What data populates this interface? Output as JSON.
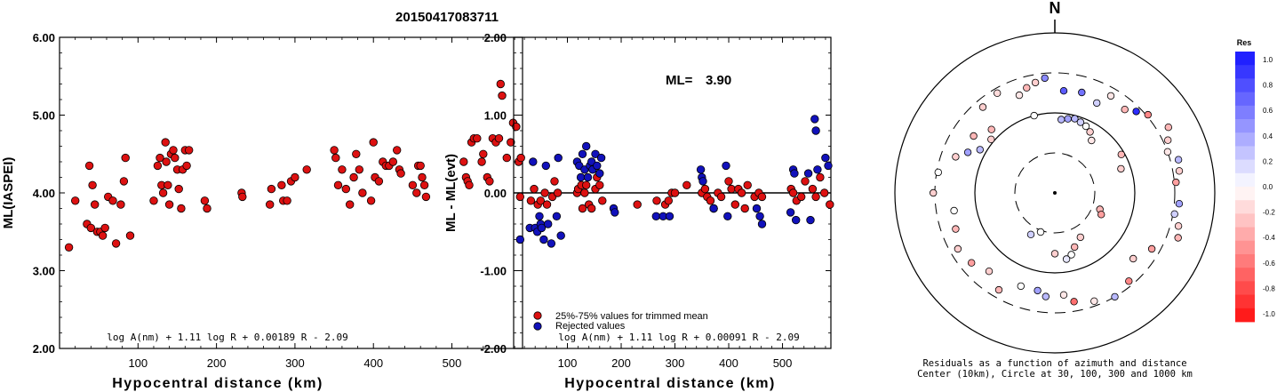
{
  "figure": {
    "title": "20150417083711"
  },
  "chart_data": [
    {
      "type": "scatter",
      "ylabel": "ML(IASPEI)",
      "xlabel": "Hypocentral distance (km)",
      "xlim": [
        0,
        590
      ],
      "ylim": [
        2.0,
        6.0
      ],
      "x_ticks": [
        100,
        200,
        300,
        400,
        500
      ],
      "y_ticks": [
        "2.00",
        "3.00",
        "4.00",
        "5.00",
        "6.00"
      ],
      "formula": "log A(nm) + 1.11 log R + 0.00189 R - 2.09",
      "marker_color": "#dd1111",
      "points": [
        [
          12,
          3.3
        ],
        [
          20,
          3.9
        ],
        [
          35,
          3.6
        ],
        [
          38,
          4.35
        ],
        [
          40,
          3.55
        ],
        [
          42,
          4.1
        ],
        [
          45,
          3.85
        ],
        [
          48,
          3.5
        ],
        [
          52,
          3.5
        ],
        [
          55,
          3.45
        ],
        [
          58,
          3.55
        ],
        [
          62,
          3.95
        ],
        [
          68,
          3.9
        ],
        [
          72,
          3.35
        ],
        [
          78,
          3.85
        ],
        [
          82,
          4.15
        ],
        [
          84,
          4.45
        ],
        [
          90,
          3.45
        ],
        [
          120,
          3.9
        ],
        [
          125,
          4.35
        ],
        [
          128,
          4.45
        ],
        [
          130,
          4.1
        ],
        [
          132,
          4.0
        ],
        [
          135,
          4.65
        ],
        [
          136,
          4.4
        ],
        [
          138,
          4.1
        ],
        [
          140,
          3.85
        ],
        [
          142,
          4.5
        ],
        [
          145,
          4.55
        ],
        [
          147,
          4.45
        ],
        [
          150,
          4.3
        ],
        [
          152,
          4.05
        ],
        [
          155,
          3.8
        ],
        [
          157,
          4.3
        ],
        [
          160,
          4.55
        ],
        [
          162,
          4.35
        ],
        [
          165,
          4.55
        ],
        [
          185,
          3.9
        ],
        [
          188,
          3.8
        ],
        [
          232,
          4.0
        ],
        [
          233,
          3.95
        ],
        [
          268,
          3.85
        ],
        [
          270,
          4.05
        ],
        [
          283,
          4.1
        ],
        [
          285,
          3.9
        ],
        [
          290,
          3.9
        ],
        [
          295,
          4.15
        ],
        [
          300,
          4.2
        ],
        [
          315,
          4.3
        ],
        [
          350,
          4.55
        ],
        [
          352,
          4.45
        ],
        [
          355,
          4.1
        ],
        [
          360,
          4.3
        ],
        [
          365,
          4.05
        ],
        [
          370,
          3.85
        ],
        [
          375,
          4.2
        ],
        [
          378,
          4.5
        ],
        [
          382,
          4.3
        ],
        [
          386,
          4.0
        ],
        [
          397,
          3.9
        ],
        [
          400,
          4.65
        ],
        [
          402,
          4.2
        ],
        [
          407,
          4.15
        ],
        [
          412,
          4.4
        ],
        [
          416,
          4.35
        ],
        [
          420,
          4.35
        ],
        [
          425,
          4.4
        ],
        [
          430,
          4.55
        ],
        [
          433,
          4.3
        ],
        [
          435,
          4.25
        ],
        [
          450,
          4.1
        ],
        [
          455,
          4.0
        ],
        [
          457,
          4.35
        ],
        [
          460,
          4.35
        ],
        [
          462,
          4.2
        ],
        [
          465,
          4.1
        ],
        [
          467,
          3.95
        ],
        [
          515,
          4.4
        ],
        [
          518,
          4.2
        ],
        [
          520,
          4.15
        ],
        [
          522,
          4.1
        ],
        [
          525,
          4.65
        ],
        [
          528,
          4.7
        ],
        [
          532,
          4.7
        ],
        [
          538,
          4.4
        ],
        [
          540,
          4.5
        ],
        [
          545,
          4.2
        ],
        [
          548,
          4.15
        ],
        [
          552,
          4.7
        ],
        [
          556,
          4.65
        ],
        [
          560,
          4.7
        ],
        [
          562,
          5.4
        ],
        [
          564,
          5.25
        ],
        [
          570,
          4.45
        ],
        [
          575,
          4.65
        ],
        [
          578,
          4.9
        ],
        [
          582,
          4.85
        ],
        [
          585,
          4.4
        ],
        [
          588,
          4.45
        ]
      ]
    },
    {
      "type": "scatter",
      "ylabel": "ML - ML(evt)",
      "xlabel": "Hypocentral distance (km)",
      "xlim": [
        0,
        590
      ],
      "ylim": [
        -2.0,
        2.0
      ],
      "x_ticks": [
        100,
        200,
        300,
        400,
        500
      ],
      "y_ticks": [
        "-2.00",
        "-1.00",
        "0.00",
        "1.00",
        "2.00"
      ],
      "ml_label": "ML=",
      "ml_value": "3.90",
      "formula": "log A(nm) + 1.11 log R + 0.00091 R - 2.09",
      "legend": [
        {
          "label": "25%-75% values for trimmed mean",
          "color": "#dd1111"
        },
        {
          "label": "Rejected values",
          "color": "#1111bb"
        }
      ],
      "series": [
        {
          "name": "25%-75% values for trimmed mean",
          "color": "#dd1111",
          "points": [
            [
              12,
              -0.05
            ],
            [
              32,
              -0.1
            ],
            [
              38,
              0.05
            ],
            [
              45,
              -0.15
            ],
            [
              50,
              -0.1
            ],
            [
              58,
              0.0
            ],
            [
              62,
              -0.15
            ],
            [
              72,
              -0.05
            ],
            [
              76,
              0.15
            ],
            [
              82,
              0.0
            ],
            [
              118,
              0.0
            ],
            [
              120,
              0.05
            ],
            [
              126,
              0.1
            ],
            [
              128,
              -0.2
            ],
            [
              132,
              0.0
            ],
            [
              135,
              0.1
            ],
            [
              140,
              -0.15
            ],
            [
              145,
              -0.2
            ],
            [
              152,
              0.05
            ],
            [
              155,
              0.2
            ],
            [
              160,
              0.1
            ],
            [
              165,
              -0.1
            ],
            [
              230,
              -0.15
            ],
            [
              266,
              -0.1
            ],
            [
              282,
              -0.15
            ],
            [
              288,
              -0.1
            ],
            [
              294,
              0.0
            ],
            [
              300,
              0.0
            ],
            [
              322,
              0.1
            ],
            [
              350,
              0.0
            ],
            [
              356,
              0.05
            ],
            [
              360,
              -0.05
            ],
            [
              366,
              -0.1
            ],
            [
              372,
              -0.2
            ],
            [
              380,
              0.0
            ],
            [
              386,
              -0.05
            ],
            [
              400,
              0.15
            ],
            [
              405,
              0.05
            ],
            [
              412,
              -0.15
            ],
            [
              418,
              0.05
            ],
            [
              424,
              0.0
            ],
            [
              430,
              -0.2
            ],
            [
              435,
              0.1
            ],
            [
              448,
              -0.05
            ],
            [
              456,
              0.0
            ],
            [
              462,
              -0.05
            ],
            [
              516,
              0.05
            ],
            [
              520,
              0.0
            ],
            [
              526,
              -0.1
            ],
            [
              535,
              -0.05
            ],
            [
              542,
              0.15
            ],
            [
              556,
              0.05
            ],
            [
              562,
              -0.05
            ],
            [
              570,
              0.2
            ],
            [
              578,
              0.0
            ],
            [
              588,
              -0.15
            ]
          ]
        },
        {
          "name": "Rejected values",
          "color": "#1111bb",
          "points": [
            [
              12,
              -0.6
            ],
            [
              30,
              -0.45
            ],
            [
              36,
              0.4
            ],
            [
              40,
              -0.45
            ],
            [
              44,
              -0.5
            ],
            [
              48,
              -0.3
            ],
            [
              50,
              -0.4
            ],
            [
              52,
              -0.45
            ],
            [
              56,
              -0.6
            ],
            [
              60,
              0.35
            ],
            [
              64,
              -0.4
            ],
            [
              70,
              -0.65
            ],
            [
              80,
              -0.3
            ],
            [
              83,
              0.45
            ],
            [
              88,
              -0.55
            ],
            [
              118,
              0.4
            ],
            [
              122,
              0.35
            ],
            [
              125,
              0.2
            ],
            [
              128,
              0.5
            ],
            [
              132,
              0.3
            ],
            [
              135,
              0.6
            ],
            [
              138,
              0.2
            ],
            [
              142,
              0.35
            ],
            [
              145,
              0.4
            ],
            [
              147,
              0.3
            ],
            [
              152,
              0.5
            ],
            [
              155,
              0.35
            ],
            [
              160,
              0.25
            ],
            [
              163,
              0.45
            ],
            [
              186,
              -0.2
            ],
            [
              188,
              -0.25
            ],
            [
              265,
              -0.3
            ],
            [
              278,
              -0.3
            ],
            [
              290,
              -0.3
            ],
            [
              348,
              0.3
            ],
            [
              350,
              0.2
            ],
            [
              352,
              0.15
            ],
            [
              372,
              -0.2
            ],
            [
              395,
              0.35
            ],
            [
              398,
              -0.3
            ],
            [
              452,
              -0.2
            ],
            [
              458,
              -0.3
            ],
            [
              462,
              -0.4
            ],
            [
              515,
              -0.25
            ],
            [
              520,
              0.3
            ],
            [
              522,
              0.25
            ],
            [
              525,
              -0.35
            ],
            [
              548,
              0.25
            ],
            [
              552,
              -0.35
            ],
            [
              560,
              0.95
            ],
            [
              562,
              0.8
            ],
            [
              565,
              0.3
            ],
            [
              580,
              0.45
            ],
            [
              585,
              0.35
            ]
          ]
        }
      ]
    },
    {
      "type": "scatter",
      "plot_kind": "polar residuals",
      "north_label": "N",
      "caption_line1": "Residuals as a function of azimuth and distance",
      "caption_line2": "Center (10km), Circle at 30, 100, 300 and 1000 km",
      "colorbar_title": "Res",
      "colorbar_ticks": [
        "1.0",
        "0.8",
        "0.6",
        "0.4",
        "0.2",
        "0.0",
        "-0.2",
        "-0.4",
        "-0.6",
        "-0.8",
        "-1.0"
      ],
      "points": [
        [
          305,
          620,
          -0.3
        ],
        [
          320,
          700,
          -0.2
        ],
        [
          330,
          720,
          -0.15
        ],
        [
          340,
          650,
          -0.1
        ],
        [
          345,
          680,
          -0.3
        ],
        [
          350,
          700,
          -0.2
        ],
        [
          355,
          720,
          0.5
        ],
        [
          5,
          640,
          0.7
        ],
        [
          15,
          650,
          0.6
        ],
        [
          25,
          620,
          0.2
        ],
        [
          30,
          700,
          -0.1
        ],
        [
          40,
          680,
          -0.3
        ],
        [
          45,
          720,
          0.9
        ],
        [
          50,
          760,
          -0.5
        ],
        [
          60,
          820,
          -0.3
        ],
        [
          65,
          780,
          -0.2
        ],
        [
          70,
          750,
          -0.1
        ],
        [
          75,
          800,
          0.3
        ],
        [
          80,
          790,
          -0.2
        ],
        [
          85,
          760,
          -0.4
        ],
        [
          95,
          780,
          0.4
        ],
        [
          100,
          760,
          0.2
        ],
        [
          105,
          800,
          -0.2
        ],
        [
          110,
          820,
          -0.3
        ],
        [
          120,
          700,
          -0.4
        ],
        [
          130,
          640,
          -0.2
        ],
        [
          140,
          720,
          -0.5
        ],
        [
          150,
          750,
          0.3
        ],
        [
          160,
          720,
          -0.1
        ],
        [
          170,
          690,
          -0.6
        ],
        [
          175,
          640,
          -0.1
        ],
        [
          185,
          650,
          0.3
        ],
        [
          190,
          620,
          0.4
        ],
        [
          200,
          620,
          0.0
        ],
        [
          210,
          700,
          -0.3
        ],
        [
          220,
          640,
          -0.2
        ],
        [
          230,
          680,
          -0.4
        ],
        [
          240,
          700,
          -0.2
        ],
        [
          250,
          660,
          -0.3
        ],
        [
          260,
          640,
          0.0
        ],
        [
          270,
          760,
          -0.2
        ],
        [
          280,
          740,
          0.0
        ],
        [
          290,
          660,
          -0.2
        ],
        [
          295,
          600,
          0.4
        ],
        [
          300,
          540,
          0.3
        ],
        [
          310,
          520,
          -0.2
        ],
        [
          315,
          560,
          -0.3
        ],
        [
          345,
          500,
          0.0
        ],
        [
          5,
          460,
          0.3
        ],
        [
          10,
          470,
          0.4
        ],
        [
          15,
          480,
          0.3
        ],
        [
          20,
          470,
          0.2
        ],
        [
          25,
          460,
          0.0
        ],
        [
          30,
          440,
          -0.2
        ],
        [
          35,
          400,
          -0.1
        ],
        [
          60,
          480,
          -0.3
        ],
        [
          70,
          440,
          -0.2
        ],
        [
          110,
          300,
          -0.3
        ],
        [
          115,
          320,
          -0.4
        ],
        [
          150,
          320,
          -0.2
        ],
        [
          160,
          360,
          -0.3
        ],
        [
          165,
          400,
          0.0
        ],
        [
          170,
          420,
          0.1
        ],
        [
          180,
          380,
          -0.2
        ],
        [
          200,
          260,
          0.0
        ],
        [
          210,
          300,
          0.2
        ]
      ]
    }
  ]
}
